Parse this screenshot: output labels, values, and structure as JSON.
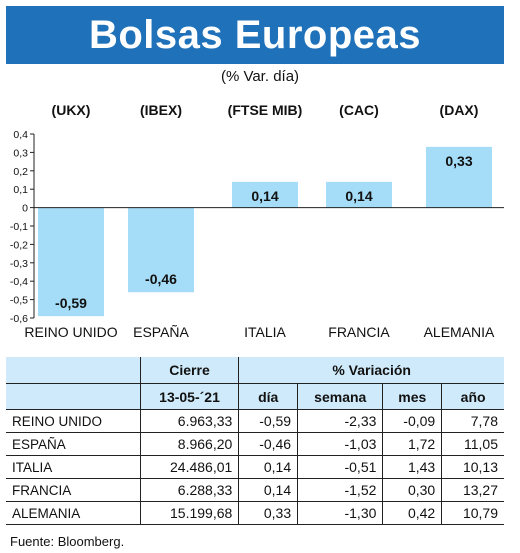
{
  "header": {
    "title": "Bolsas Europeas",
    "subtitle": "(% Var. día)"
  },
  "chart_data": {
    "type": "bar",
    "categories": [
      "REINO UNIDO",
      "ESPAÑA",
      "ITALIA",
      "FRANCIA",
      "ALEMANIA"
    ],
    "indices": [
      "(UKX)",
      "(IBEX)",
      "(FTSE MIB)",
      "(CAC)",
      "(DAX)"
    ],
    "values": [
      -0.59,
      -0.46,
      0.14,
      0.14,
      0.33
    ],
    "value_labels": [
      "-0,59",
      "-0,46",
      "0,14",
      "0,14",
      "0,33"
    ],
    "ylim": [
      -0.6,
      0.4
    ],
    "yticks": [
      0.4,
      0.3,
      0.2,
      0.1,
      0,
      -0.1,
      -0.2,
      -0.3,
      -0.4,
      -0.5,
      -0.6
    ],
    "ytick_labels": [
      "0,4",
      "0,3",
      "0,2",
      "0,1",
      "0",
      "-0,1",
      "-0,2",
      "-0,3",
      "-0,4",
      "-0,5",
      "-0,6"
    ],
    "bar_color": "#a5dcf7",
    "grid": false
  },
  "table": {
    "header_cierre": "Cierre",
    "header_date": "13-05-´21",
    "header_variacion": "% Variación",
    "col_dia": "día",
    "col_semana": "semana",
    "col_mes": "mes",
    "col_ano": "año",
    "rows": [
      {
        "name": "REINO UNIDO",
        "cierre": "6.963,33",
        "dia": "-0,59",
        "semana": "-2,33",
        "mes": "-0,09",
        "ano": "7,78"
      },
      {
        "name": "ESPAÑA",
        "cierre": "8.966,20",
        "dia": "-0,46",
        "semana": "-1,03",
        "mes": "1,72",
        "ano": "11,05"
      },
      {
        "name": "ITALIA",
        "cierre": "24.486,01",
        "dia": "0,14",
        "semana": "-0,51",
        "mes": "1,43",
        "ano": "10,13"
      },
      {
        "name": "FRANCIA",
        "cierre": "6.288,33",
        "dia": "0,14",
        "semana": "-1,52",
        "mes": "0,30",
        "ano": "13,27"
      },
      {
        "name": "ALEMANIA",
        "cierre": "15.199,68",
        "dia": "0,33",
        "semana": "-1,30",
        "mes": "0,42",
        "ano": "10,79"
      }
    ],
    "header_color": "#cfeafa"
  },
  "source": "Fuente: Bloomberg."
}
